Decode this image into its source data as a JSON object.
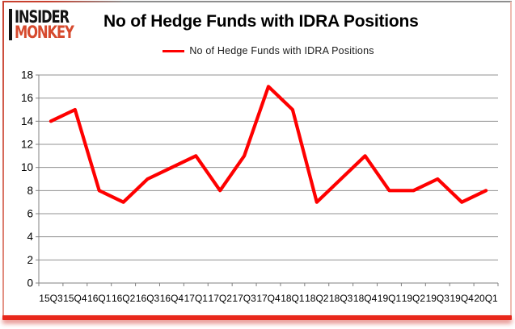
{
  "branding": {
    "line1": "INSIDER",
    "line2": "MONKEY"
  },
  "title": "No of Hedge Funds with IDRA Positions",
  "legend": {
    "label": "No of Hedge Funds with IDRA Positions"
  },
  "colors": {
    "line": "#fe0000",
    "logo_red": "#d64a2e",
    "grid": "#919191",
    "axis": "#808080",
    "tick_text": "#000000",
    "card_bottom": "#e8271b"
  },
  "chart_data": {
    "type": "line",
    "title": "No of Hedge Funds with IDRA Positions",
    "categories": [
      "15Q3",
      "15Q4",
      "16Q1",
      "16Q2",
      "16Q3",
      "16Q4",
      "17Q1",
      "17Q2",
      "17Q3",
      "17Q4",
      "18Q1",
      "18Q2",
      "18Q3",
      "18Q4",
      "19Q1",
      "19Q2",
      "19Q3",
      "19Q4",
      "20Q1"
    ],
    "series": [
      {
        "name": "No of Hedge Funds with IDRA Positions",
        "values": [
          14,
          15,
          8,
          7,
          9,
          10,
          11,
          8,
          11,
          17,
          15,
          7,
          9,
          11,
          8,
          8,
          9,
          7,
          8
        ]
      }
    ],
    "xlabel": "",
    "ylabel": "",
    "ylim": [
      0,
      18
    ],
    "yticks": [
      0,
      2,
      4,
      6,
      8,
      10,
      12,
      14,
      16,
      18
    ],
    "grid": true,
    "legend_position": "top-center"
  }
}
